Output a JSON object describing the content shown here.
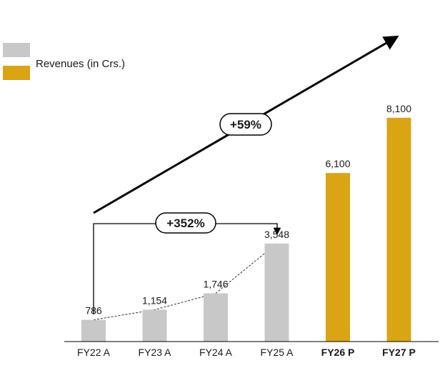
{
  "chart_data": {
    "type": "bar",
    "categories": [
      "FY22 A",
      "FY23 A",
      "FY24 A",
      "FY25 A",
      "FY26 P",
      "FY27 P"
    ],
    "values": [
      786,
      1154,
      1746,
      3548,
      6100,
      8100
    ],
    "value_labels": [
      "786",
      "1,154",
      "1,746",
      "3,548",
      "6,100",
      "8,100"
    ],
    "bold_categories": [
      false,
      false,
      false,
      false,
      true,
      true
    ],
    "bar_colors": [
      "#c8c8c8",
      "#c8c8c8",
      "#c8c8c8",
      "#c8c8c8",
      "#d9a514",
      "#d9a514"
    ],
    "legend": [
      {
        "color": "#c8c8c8",
        "label": ""
      },
      {
        "color": "#d9a514",
        "label": "Revenues (in Crs.)"
      }
    ],
    "ylim": [
      0,
      9000
    ],
    "grid": false,
    "legend_position": "top-left",
    "annotations": {
      "cagr_overall": "+59%",
      "growth_actuals": "+352%"
    }
  }
}
